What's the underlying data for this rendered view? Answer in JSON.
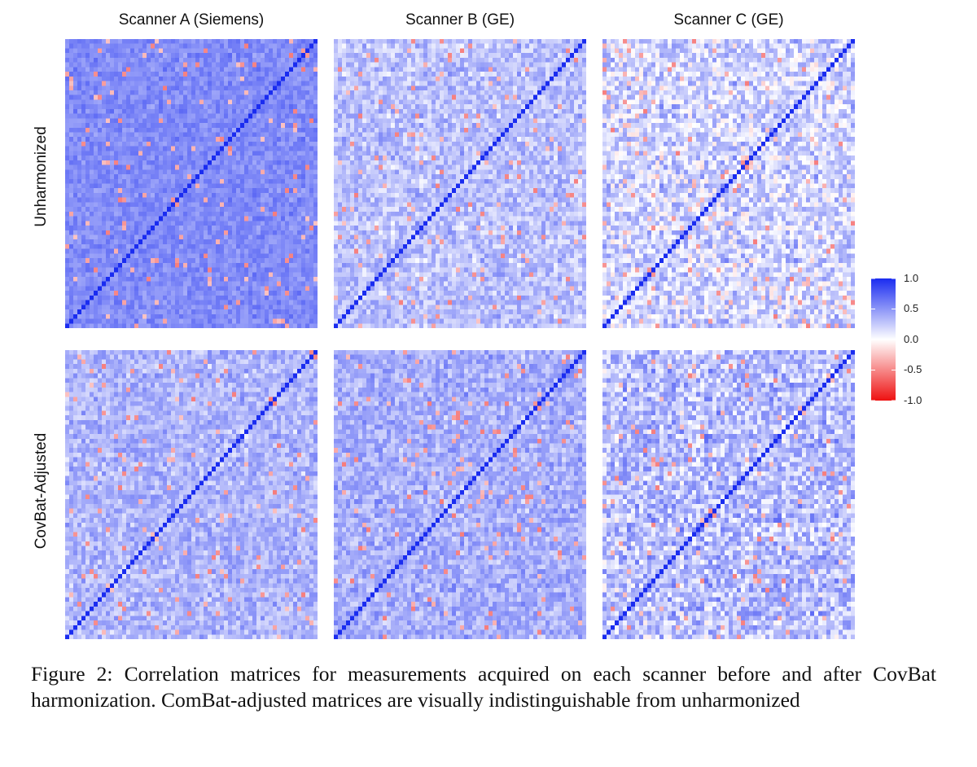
{
  "chart_data": {
    "type": "heatmap",
    "columns": [
      "Scanner A (Siemens)",
      "Scanner B (GE)",
      "Scanner C (GE)"
    ],
    "rows": [
      "Unharmonized",
      "CovBat-Adjusted"
    ],
    "legend": {
      "ticks": [
        {
          "value": 1.0,
          "label": "1.0"
        },
        {
          "value": 0.5,
          "label": "0.5"
        },
        {
          "value": 0.0,
          "label": "0.0"
        },
        {
          "value": -0.5,
          "label": "-0.5"
        },
        {
          "value": -1.0,
          "label": "-1.0"
        }
      ],
      "range": [
        -1.0,
        1.0
      ],
      "colors": {
        "high": "#1a2cf0",
        "mid": "#ffffff",
        "low": "#ee1111"
      },
      "placement": "right"
    },
    "matrix_size": 62,
    "panels": [
      {
        "row": "Unharmonized",
        "column": "Scanner A (Siemens)",
        "mean_offdiag_corr": 0.55,
        "spread": 0.13
      },
      {
        "row": "Unharmonized",
        "column": "Scanner B (GE)",
        "mean_offdiag_corr": 0.3,
        "spread": 0.22
      },
      {
        "row": "Unharmonized",
        "column": "Scanner C (GE)",
        "mean_offdiag_corr": 0.2,
        "spread": 0.3
      },
      {
        "row": "CovBat-Adjusted",
        "column": "Scanner A (Siemens)",
        "mean_offdiag_corr": 0.35,
        "spread": 0.2
      },
      {
        "row": "CovBat-Adjusted",
        "column": "Scanner B (GE)",
        "mean_offdiag_corr": 0.38,
        "spread": 0.2
      },
      {
        "row": "CovBat-Adjusted",
        "column": "Scanner C (GE)",
        "mean_offdiag_corr": 0.3,
        "spread": 0.3
      }
    ]
  },
  "caption": "Figure 2: Correlation matrices for measurements acquired on each scanner before and after CovBat harmonization. ComBat-adjusted matrices are visually indistinguishable from unharmonized"
}
